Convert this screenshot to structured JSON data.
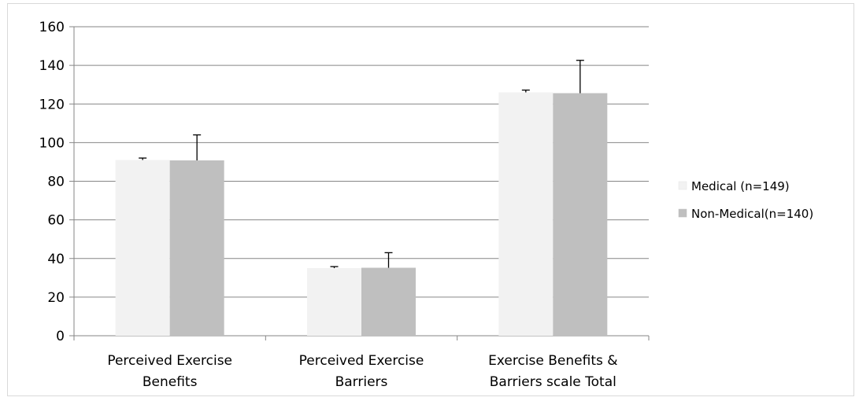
{
  "chart_data": {
    "type": "bar",
    "title": "",
    "xlabel": "",
    "ylabel": "",
    "categories": [
      [
        "Perceived Exercise",
        "Benefits"
      ],
      [
        "Perceived Exercise",
        "Barriers"
      ],
      [
        "Exercise Benefits &",
        "Barriers scale Total"
      ]
    ],
    "series": [
      {
        "name": "Medical  (n=149)",
        "color": "#f2f2f2",
        "values": [
          91.0,
          35.0,
          126.0
        ],
        "error": [
          1.0,
          0.8,
          1.2
        ]
      },
      {
        "name": "Non-Medical(n=140)",
        "color": "#bfbfbf",
        "values": [
          90.8,
          35.2,
          125.6
        ],
        "error": [
          13.2,
          7.8,
          17.0
        ]
      }
    ],
    "ylim": [
      0,
      160
    ],
    "yticks": [
      0,
      20,
      40,
      60,
      80,
      100,
      120,
      140,
      160
    ],
    "grid": true,
    "legend_position": "right"
  }
}
